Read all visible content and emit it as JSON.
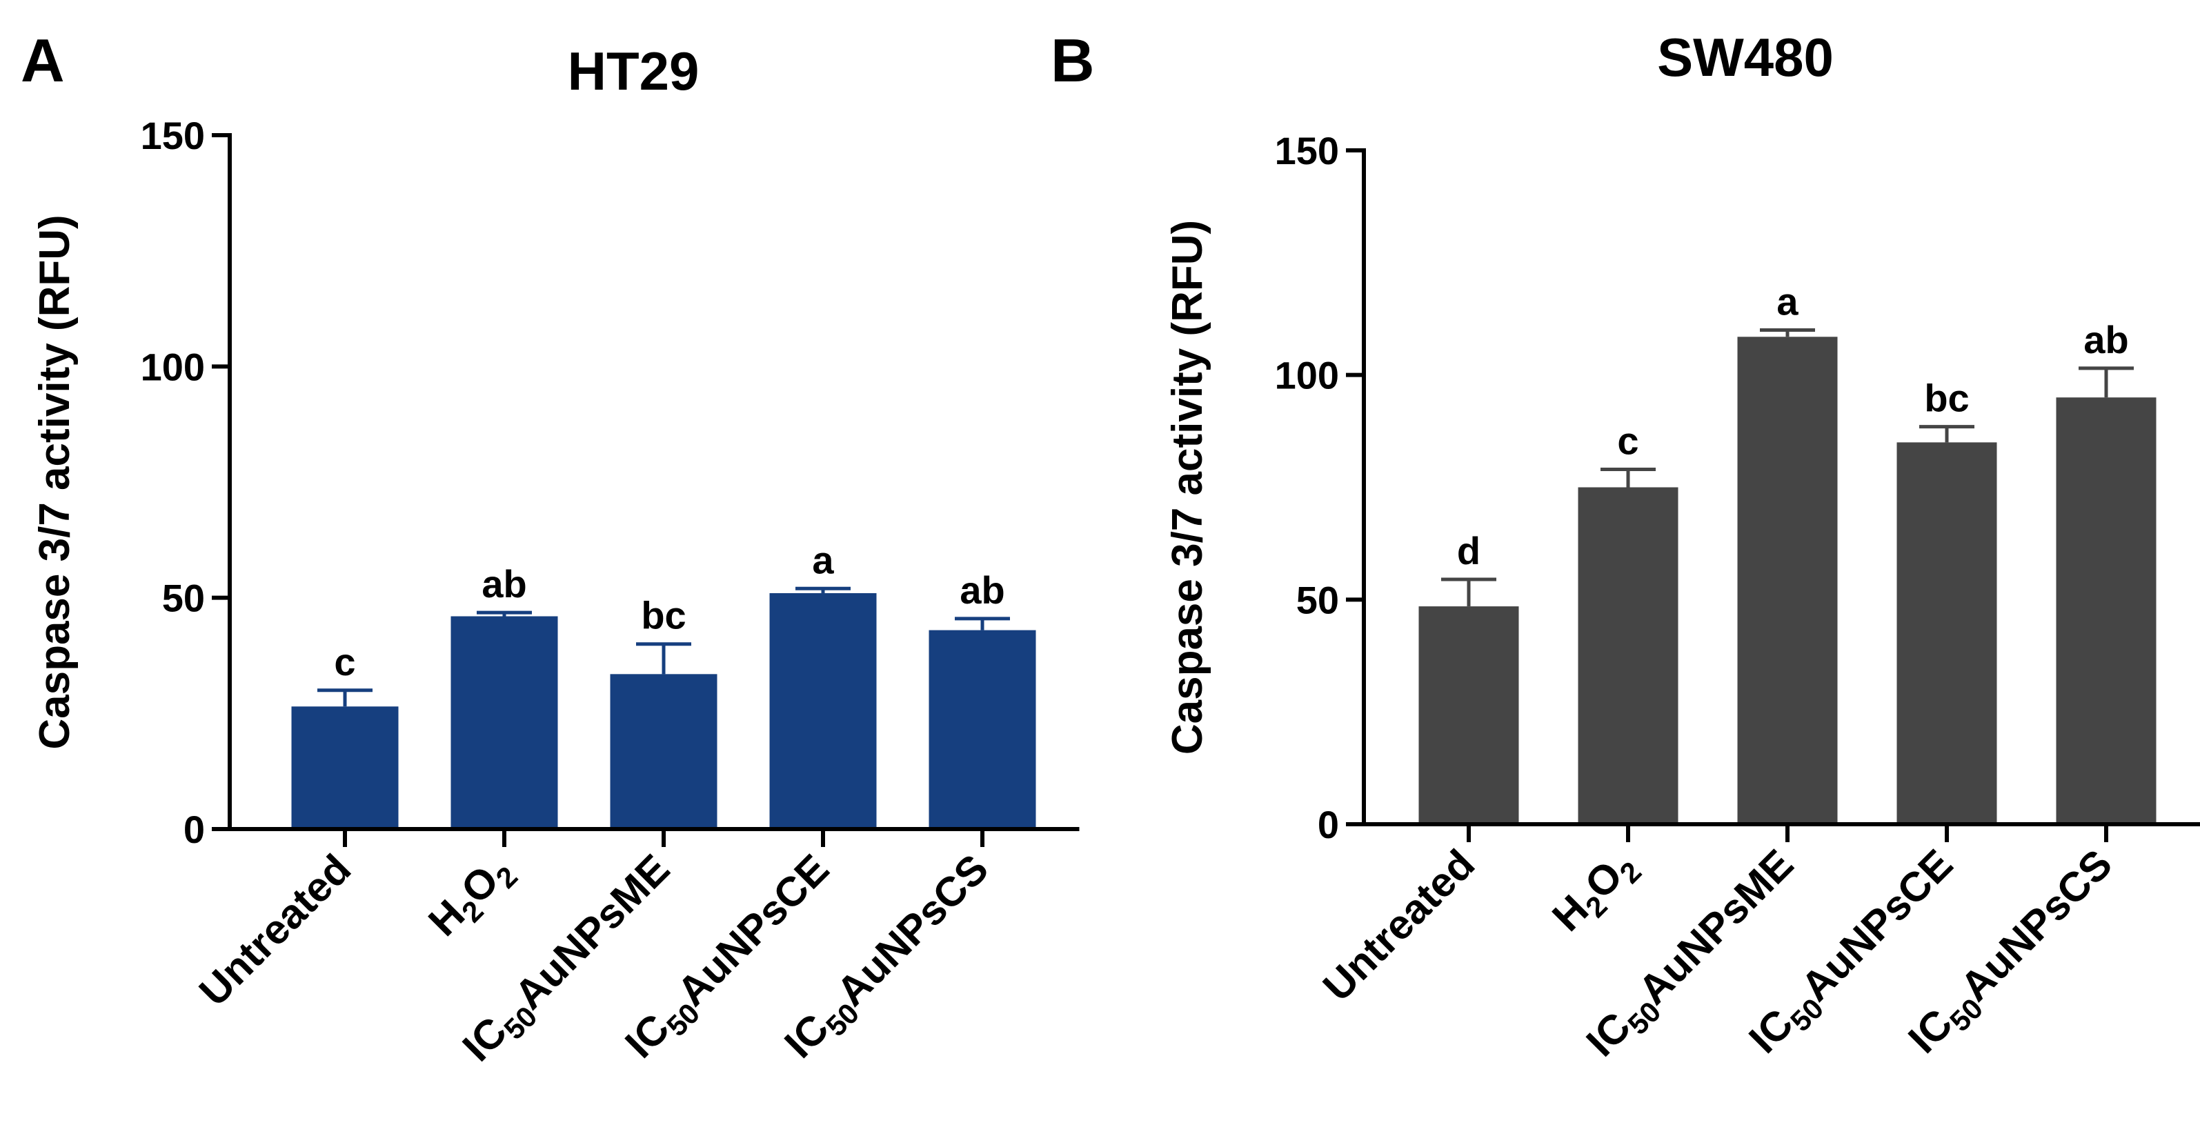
{
  "chart_data": [
    {
      "type": "bar",
      "panel": "A",
      "title": "HT29",
      "ylabel": "Caspase 3/7 activity (RFU)",
      "xlabel": "",
      "ylim": [
        0,
        150
      ],
      "yticks": [
        0,
        50,
        100,
        150
      ],
      "color": "#163f7f",
      "categories": [
        {
          "base": "Untreated",
          "sub": "",
          "rest": "",
          "extra": ""
        },
        {
          "base": "H",
          "sub": "2",
          "rest": "O",
          "extra": "2"
        },
        {
          "base": "IC",
          "sub": "50",
          "rest": "AuNPsME",
          "extra": ""
        },
        {
          "base": "IC",
          "sub": "50",
          "rest": "AuNPsCE",
          "extra": ""
        },
        {
          "base": "IC",
          "sub": "50",
          "rest": "AuNPsCS",
          "extra": ""
        }
      ],
      "values": [
        26.5,
        46,
        33.5,
        51,
        43
      ],
      "errors": [
        3.5,
        0.8,
        6.5,
        1,
        2.5
      ],
      "significance": [
        "c",
        "ab",
        "bc",
        "a",
        "ab"
      ]
    },
    {
      "type": "bar",
      "panel": "B",
      "title": "SW480",
      "ylabel": "Caspase 3/7 activity (RFU)",
      "xlabel": "",
      "ylim": [
        0,
        150
      ],
      "yticks": [
        0,
        50,
        100,
        150
      ],
      "color": "#454545",
      "categories": [
        {
          "base": "Untreated",
          "sub": "",
          "rest": "",
          "extra": ""
        },
        {
          "base": "H",
          "sub": "2",
          "rest": "O",
          "extra": "2"
        },
        {
          "base": "IC",
          "sub": "50",
          "rest": "AuNPsME",
          "extra": ""
        },
        {
          "base": "IC",
          "sub": "50",
          "rest": "AuNPsCE",
          "extra": ""
        },
        {
          "base": "IC",
          "sub": "50",
          "rest": "AuNPsCS",
          "extra": ""
        }
      ],
      "values": [
        48.5,
        75,
        108.5,
        85,
        95
      ],
      "errors": [
        6,
        4,
        1.5,
        3.5,
        6.5
      ],
      "significance": [
        "d",
        "c",
        "a",
        "bc",
        "ab"
      ]
    }
  ]
}
